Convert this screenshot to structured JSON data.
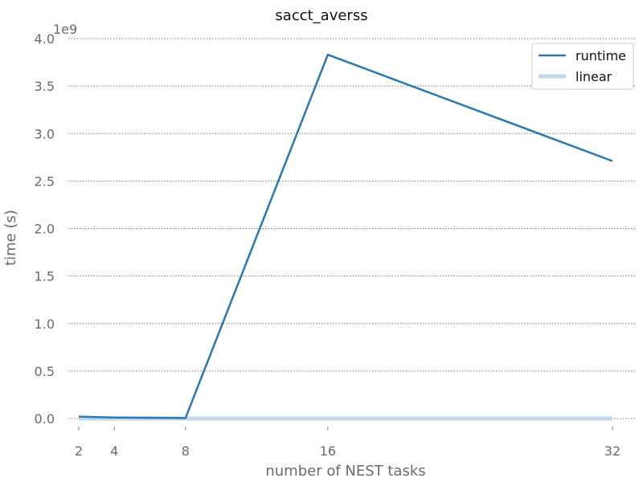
{
  "chart_data": {
    "type": "line",
    "title": "sacct_averss",
    "xlabel": "number of NEST tasks",
    "ylabel": "time (s)",
    "y_scale_label": "1e9",
    "x_ticks": [
      2,
      4,
      8,
      16,
      32
    ],
    "y_ticks": [
      0.0,
      0.5,
      1.0,
      1.5,
      2.0,
      2.5,
      3.0,
      3.5,
      4.0
    ],
    "y_tick_labels": [
      "0.0",
      "0.5",
      "1.0",
      "1.5",
      "2.0",
      "2.5",
      "3.0",
      "3.5",
      "4.0"
    ],
    "xlim": [
      1.5,
      33
    ],
    "ylim": [
      -0.1,
      4.0
    ],
    "grid": "y-dotted",
    "legend_position": "top-right",
    "series": [
      {
        "name": "runtime",
        "color": "#2b77b0",
        "x": [
          2,
          4,
          8,
          16,
          32
        ],
        "y": [
          0.02,
          0.01,
          0.005,
          3.83,
          2.71
        ]
      },
      {
        "name": "linear",
        "color": "#c2d8ea",
        "x": [
          2,
          4,
          8,
          16,
          32
        ],
        "y": [
          0.0,
          0.0,
          0.0,
          0.0,
          0.0
        ]
      }
    ]
  }
}
